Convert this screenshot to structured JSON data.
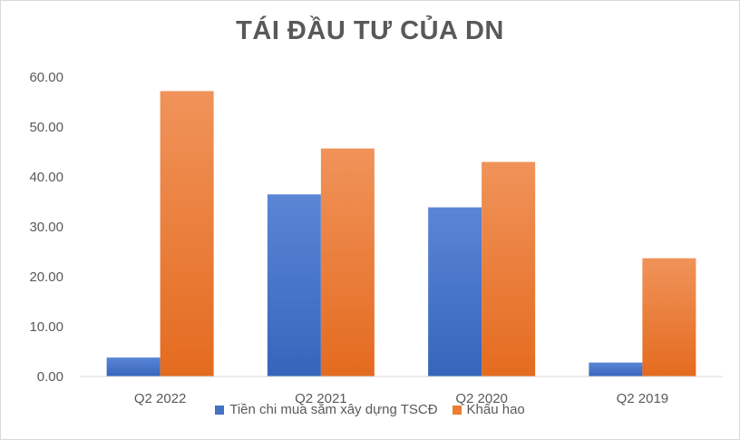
{
  "chart_data": {
    "type": "bar",
    "title": "TÁI ĐẦU TƯ CỦA DN",
    "categories": [
      "Q2 2022",
      "Q2 2021",
      "Q2 2020",
      "Q2 2019"
    ],
    "series": [
      {
        "name": "Tiền chi mua sắm xây dựng TSCĐ",
        "values": [
          3.8,
          36.5,
          33.9,
          2.8
        ],
        "color": "#4472c4"
      },
      {
        "name": "Khấu hao",
        "values": [
          57.2,
          45.7,
          43.0,
          23.7
        ],
        "color": "#ed7d31"
      }
    ],
    "yticks": [
      "0.00",
      "10.00",
      "20.00",
      "30.00",
      "40.00",
      "50.00",
      "60.00"
    ],
    "ylim": [
      0,
      60
    ],
    "grid": false,
    "legend_position": "bottom"
  }
}
